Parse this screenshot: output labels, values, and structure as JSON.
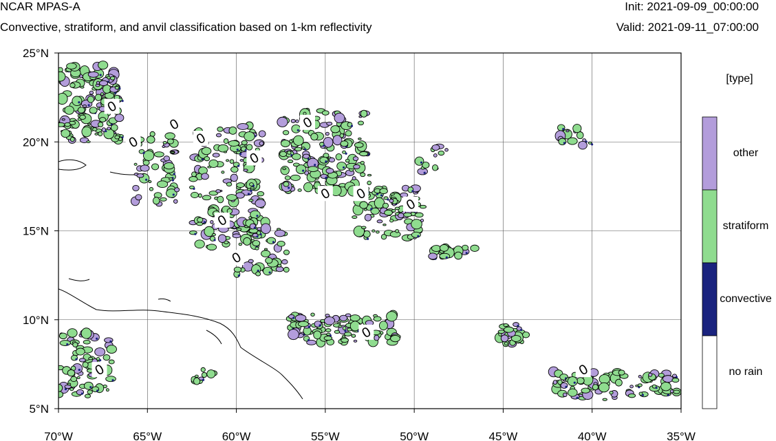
{
  "header": {
    "model": "NCAR MPAS-A",
    "subtitle": "Convective, stratiform, and anvil classification based on 1-km reflectivity",
    "init": "Init: 2021-09-09_00:00:00",
    "valid": "Valid: 2021-09-11_07:00:00"
  },
  "map": {
    "lon_range": [
      -70,
      -35
    ],
    "lat_range": [
      5,
      25
    ],
    "x_ticks": [
      {
        "value": -70,
        "label": "70°W"
      },
      {
        "value": -65,
        "label": "65°W"
      },
      {
        "value": -60,
        "label": "60°W"
      },
      {
        "value": -55,
        "label": "55°W"
      },
      {
        "value": -50,
        "label": "50°W"
      },
      {
        "value": -45,
        "label": "45°W"
      },
      {
        "value": -40,
        "label": "40°W"
      },
      {
        "value": -35,
        "label": "35°W"
      }
    ],
    "y_ticks": [
      {
        "value": 25,
        "label": "25°N"
      },
      {
        "value": 20,
        "label": "20°N"
      },
      {
        "value": 15,
        "label": "15°N"
      },
      {
        "value": 10,
        "label": "10°N"
      },
      {
        "value": 5,
        "label": "5°N"
      }
    ],
    "gridlines": true,
    "contour_label": "0"
  },
  "legend": {
    "title": "[type]",
    "categories": [
      {
        "label": "other",
        "color": "#b39ddb"
      },
      {
        "label": "stratiform",
        "color": "#8fdc8f"
      },
      {
        "label": "convective",
        "color": "#1a237e"
      },
      {
        "label": "no rain",
        "color": "#ffffff"
      }
    ]
  }
}
